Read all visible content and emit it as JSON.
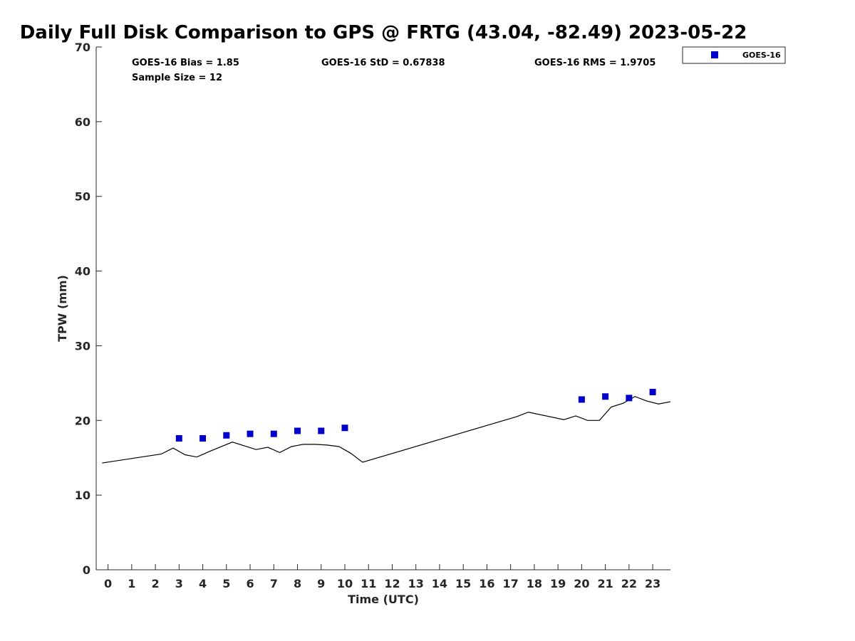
{
  "chart_data": {
    "type": "scatter",
    "title": "Daily Full Disk Comparison to GPS @ FRTG (43.04, -82.49) 2023-05-22",
    "xlabel": "Time (UTC)",
    "ylabel": "TPW (mm)",
    "xlim": [
      -0.5,
      23.75
    ],
    "ylim": [
      0,
      70
    ],
    "xticks": [
      0,
      1,
      2,
      3,
      4,
      5,
      6,
      7,
      8,
      9,
      10,
      11,
      12,
      13,
      14,
      15,
      16,
      17,
      18,
      19,
      20,
      21,
      22,
      23
    ],
    "xtick_labels": [
      "0",
      "1",
      "2",
      "3",
      "4",
      "5",
      "6",
      "7",
      "8",
      "9",
      "10",
      "11",
      "12",
      "13",
      "14",
      "15",
      "16",
      "17",
      "18",
      "19",
      "20",
      "21",
      "22",
      "23"
    ],
    "yticks": [
      0,
      10,
      20,
      30,
      40,
      50,
      60,
      70
    ],
    "ytick_labels": [
      "0",
      "10",
      "20",
      "30",
      "40",
      "50",
      "60",
      "70"
    ],
    "grid": false,
    "legend_position": "top-right outside",
    "stats": {
      "bias": "GOES-16 Bias = 1.85",
      "std": "GOES-16 StD = 0.67838",
      "rms": "GOES-16 RMS = 1.9705",
      "sample_size": "Sample Size = 12"
    },
    "series": [
      {
        "name": "GOES-16",
        "kind": "scatter",
        "color": "#0000cc",
        "marker": "square",
        "x": [
          3,
          4,
          5,
          6,
          7,
          8,
          9,
          10,
          20,
          21,
          22,
          23
        ],
        "y": [
          17.6,
          17.6,
          18.0,
          18.2,
          18.2,
          18.6,
          18.6,
          19.0,
          22.8,
          23.2,
          23.0,
          23.8
        ]
      },
      {
        "name": "GPS",
        "kind": "line",
        "color": "#000000",
        "x": [
          -0.25,
          2.25,
          2.75,
          3.25,
          3.75,
          4.25,
          5.25,
          6.25,
          6.75,
          7.25,
          7.75,
          8.25,
          8.75,
          9.25,
          9.75,
          10.25,
          10.75,
          17.25,
          17.75,
          19.25,
          19.75,
          20.25,
          20.75,
          21.25,
          21.75,
          22.25,
          22.75,
          23.25,
          23.75
        ],
        "y": [
          14.3,
          15.5,
          16.3,
          15.4,
          15.1,
          15.8,
          17.1,
          16.1,
          16.4,
          15.7,
          16.5,
          16.8,
          16.8,
          16.7,
          16.5,
          15.6,
          14.4,
          20.5,
          21.1,
          20.1,
          20.6,
          20.0,
          20.0,
          21.8,
          22.3,
          23.2,
          22.6,
          22.2,
          22.5
        ]
      }
    ],
    "legend": [
      {
        "label": "GOES-16",
        "color": "#0000cc",
        "marker": "square"
      }
    ]
  }
}
